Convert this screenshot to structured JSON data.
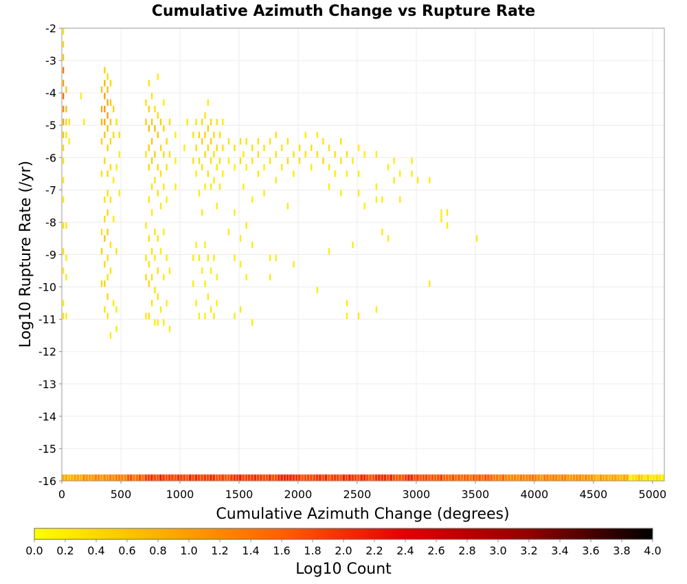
{
  "chart_data": {
    "type": "heatmap",
    "title": "Cumulative Azimuth Change vs Rupture Rate",
    "xlabel": "Cumulative Azimuth Change (degrees)",
    "ylabel": "Log10 Rupture Rate (/yr)",
    "xlim": [
      0,
      5100
    ],
    "ylim": [
      -16,
      -2
    ],
    "x_ticks": [
      0,
      500,
      1000,
      1500,
      2000,
      2500,
      3000,
      3500,
      4000,
      4500,
      5000
    ],
    "y_ticks": [
      -2,
      -3,
      -4,
      -5,
      -6,
      -7,
      -8,
      -9,
      -10,
      -11,
      -12,
      -13,
      -14,
      -15,
      -16
    ],
    "bin_width_x": 25,
    "bin_height_y": 0.2,
    "grid": true,
    "colorbar": {
      "label": "Log10 Count",
      "range": [
        0.0,
        4.0
      ],
      "ticks": [
        "0.0",
        "0.2",
        "0.4",
        "0.6",
        "0.8",
        "1.0",
        "1.2",
        "1.4",
        "1.6",
        "1.8",
        "2.0",
        "2.2",
        "2.4",
        "2.6",
        "2.8",
        "3.0",
        "3.2",
        "3.4",
        "3.6",
        "3.8",
        "4.0"
      ],
      "colors": [
        "#ffff00",
        "#ffb000",
        "#ff6000",
        "#e00000",
        "#900000",
        "#000000"
      ]
    },
    "cells": [
      [
        0,
        -2.2,
        0.3
      ],
      [
        0,
        -2.6,
        0.4
      ],
      [
        0,
        -3.0,
        0.6
      ],
      [
        0,
        -3.4,
        1.4
      ],
      [
        0,
        -3.8,
        1.0
      ],
      [
        0,
        -4.2,
        1.5
      ],
      [
        0,
        -4.6,
        1.2
      ],
      [
        0,
        -5.0,
        0.9
      ],
      [
        0,
        -5.4,
        0.6
      ],
      [
        0,
        -5.8,
        0.4
      ],
      [
        0,
        -6.2,
        0.3
      ],
      [
        0,
        -6.8,
        0.2
      ],
      [
        0,
        -7.4,
        0.2
      ],
      [
        0,
        -8.2,
        0.3
      ],
      [
        0,
        -9.0,
        0.3
      ],
      [
        0,
        -9.6,
        0.2
      ],
      [
        0,
        -10.6,
        0.2
      ],
      [
        0,
        -11.0,
        0.3
      ],
      [
        25,
        -4.0,
        0.6
      ],
      [
        25,
        -4.6,
        0.7
      ],
      [
        25,
        -5.0,
        0.5
      ],
      [
        25,
        -5.4,
        0.3
      ],
      [
        25,
        -8.2,
        0.3
      ],
      [
        25,
        -9.2,
        0.2
      ],
      [
        25,
        -9.8,
        0.2
      ],
      [
        25,
        -11.0,
        0.2
      ],
      [
        50,
        -5.0,
        0.3
      ],
      [
        50,
        -5.6,
        0.2
      ],
      [
        150,
        -4.2,
        0.2
      ],
      [
        175,
        -5.0,
        0.2
      ],
      [
        325,
        -4.0,
        0.6
      ],
      [
        325,
        -4.6,
        0.9
      ],
      [
        325,
        -5.0,
        0.8
      ],
      [
        325,
        -5.6,
        0.5
      ],
      [
        325,
        -6.6,
        0.3
      ],
      [
        325,
        -8.4,
        0.3
      ],
      [
        325,
        -9.0,
        0.5
      ],
      [
        325,
        -10.0,
        0.4
      ],
      [
        350,
        -3.4,
        0.5
      ],
      [
        350,
        -3.8,
        0.8
      ],
      [
        350,
        -4.2,
        1.0
      ],
      [
        350,
        -4.6,
        1.1
      ],
      [
        350,
        -5.0,
        0.9
      ],
      [
        350,
        -5.4,
        0.6
      ],
      [
        350,
        -6.2,
        0.4
      ],
      [
        350,
        -7.4,
        0.3
      ],
      [
        350,
        -8.0,
        0.4
      ],
      [
        350,
        -8.6,
        0.6
      ],
      [
        350,
        -9.4,
        0.4
      ],
      [
        350,
        -10.0,
        0.5
      ],
      [
        350,
        -10.8,
        0.3
      ],
      [
        375,
        -3.6,
        0.4
      ],
      [
        375,
        -4.0,
        0.7
      ],
      [
        375,
        -4.4,
        0.9
      ],
      [
        375,
        -4.8,
        1.0
      ],
      [
        375,
        -5.2,
        0.7
      ],
      [
        375,
        -5.8,
        0.5
      ],
      [
        375,
        -6.6,
        0.4
      ],
      [
        375,
        -7.2,
        0.3
      ],
      [
        375,
        -7.8,
        0.4
      ],
      [
        375,
        -8.4,
        0.5
      ],
      [
        375,
        -9.2,
        0.4
      ],
      [
        375,
        -9.8,
        0.3
      ],
      [
        375,
        -10.4,
        0.4
      ],
      [
        375,
        -11.0,
        0.3
      ],
      [
        400,
        -3.8,
        0.4
      ],
      [
        400,
        -4.4,
        0.6
      ],
      [
        400,
        -5.0,
        0.6
      ],
      [
        400,
        -5.6,
        0.4
      ],
      [
        400,
        -6.4,
        0.3
      ],
      [
        400,
        -7.4,
        0.3
      ],
      [
        400,
        -8.8,
        0.3
      ],
      [
        400,
        -9.6,
        0.3
      ],
      [
        400,
        -11.6,
        0.2
      ],
      [
        425,
        -4.6,
        0.5
      ],
      [
        425,
        -5.4,
        0.4
      ],
      [
        425,
        -6.8,
        0.2
      ],
      [
        425,
        -8.0,
        0.2
      ],
      [
        425,
        -10.6,
        0.2
      ],
      [
        450,
        -5.0,
        0.3
      ],
      [
        450,
        -6.4,
        0.2
      ],
      [
        450,
        -9.0,
        0.3
      ],
      [
        450,
        -10.8,
        0.2
      ],
      [
        450,
        -11.4,
        0.2
      ],
      [
        475,
        -5.4,
        0.3
      ],
      [
        475,
        -6.0,
        0.2
      ],
      [
        475,
        -7.2,
        0.2
      ],
      [
        700,
        -4.4,
        0.3
      ],
      [
        700,
        -5.0,
        0.5
      ],
      [
        700,
        -6.0,
        0.3
      ],
      [
        700,
        -8.2,
        0.2
      ],
      [
        700,
        -9.2,
        0.3
      ],
      [
        700,
        -9.8,
        0.4
      ],
      [
        700,
        -11.0,
        0.2
      ],
      [
        725,
        -3.8,
        0.3
      ],
      [
        725,
        -4.6,
        0.5
      ],
      [
        725,
        -5.2,
        0.7
      ],
      [
        725,
        -5.8,
        0.5
      ],
      [
        725,
        -6.4,
        0.4
      ],
      [
        725,
        -7.4,
        0.3
      ],
      [
        725,
        -8.6,
        0.3
      ],
      [
        725,
        -9.4,
        0.3
      ],
      [
        725,
        -10.0,
        0.4
      ],
      [
        725,
        -11.0,
        0.3
      ],
      [
        750,
        -4.2,
        0.3
      ],
      [
        750,
        -5.0,
        0.6
      ],
      [
        750,
        -5.6,
        0.6
      ],
      [
        750,
        -6.2,
        0.5
      ],
      [
        750,
        -7.0,
        0.3
      ],
      [
        750,
        -7.8,
        0.2
      ],
      [
        750,
        -9.0,
        0.3
      ],
      [
        750,
        -9.8,
        0.3
      ],
      [
        750,
        -10.6,
        0.3
      ],
      [
        775,
        -4.6,
        0.3
      ],
      [
        775,
        -5.2,
        0.7
      ],
      [
        775,
        -6.0,
        0.5
      ],
      [
        775,
        -6.8,
        0.3
      ],
      [
        775,
        -8.4,
        0.3
      ],
      [
        775,
        -9.2,
        0.2
      ],
      [
        775,
        -10.2,
        0.3
      ],
      [
        775,
        -11.2,
        0.2
      ],
      [
        800,
        -3.6,
        0.2
      ],
      [
        800,
        -4.8,
        0.4
      ],
      [
        800,
        -5.4,
        0.6
      ],
      [
        800,
        -6.4,
        0.4
      ],
      [
        800,
        -7.2,
        0.3
      ],
      [
        800,
        -8.6,
        0.3
      ],
      [
        800,
        -9.6,
        0.3
      ],
      [
        800,
        -10.4,
        0.3
      ],
      [
        800,
        -11.2,
        0.2
      ],
      [
        825,
        -5.0,
        0.5
      ],
      [
        825,
        -5.8,
        0.4
      ],
      [
        825,
        -6.6,
        0.3
      ],
      [
        825,
        -7.6,
        0.2
      ],
      [
        825,
        -9.0,
        0.2
      ],
      [
        825,
        -10.8,
        0.2
      ],
      [
        850,
        -4.4,
        0.2
      ],
      [
        850,
        -5.2,
        0.4
      ],
      [
        850,
        -6.0,
        0.4
      ],
      [
        850,
        -7.0,
        0.2
      ],
      [
        850,
        -8.4,
        0.2
      ],
      [
        850,
        -9.8,
        0.2
      ],
      [
        850,
        -11.2,
        0.2
      ],
      [
        875,
        -5.6,
        0.4
      ],
      [
        875,
        -6.4,
        0.3
      ],
      [
        875,
        -7.4,
        0.2
      ],
      [
        875,
        -9.2,
        0.2
      ],
      [
        875,
        -10.6,
        0.2
      ],
      [
        900,
        -5.0,
        0.3
      ],
      [
        900,
        -6.0,
        0.3
      ],
      [
        900,
        -9.6,
        0.2
      ],
      [
        900,
        -11.4,
        0.2
      ],
      [
        950,
        -5.4,
        0.2
      ],
      [
        950,
        -6.2,
        0.2
      ],
      [
        950,
        -7.0,
        0.2
      ],
      [
        1025,
        -5.8,
        0.2
      ],
      [
        1050,
        -5.0,
        0.2
      ],
      [
        1100,
        -5.4,
        0.3
      ],
      [
        1100,
        -6.2,
        0.3
      ],
      [
        1100,
        -9.2,
        0.2
      ],
      [
        1100,
        -10.0,
        0.2
      ],
      [
        1125,
        -5.0,
        0.3
      ],
      [
        1125,
        -5.8,
        0.4
      ],
      [
        1125,
        -6.6,
        0.2
      ],
      [
        1125,
        -8.8,
        0.2
      ],
      [
        1125,
        -10.6,
        0.2
      ],
      [
        1150,
        -5.4,
        0.4
      ],
      [
        1150,
        -6.2,
        0.3
      ],
      [
        1150,
        -7.2,
        0.2
      ],
      [
        1150,
        -9.2,
        0.2
      ],
      [
        1150,
        -11.0,
        0.2
      ],
      [
        1175,
        -5.0,
        0.4
      ],
      [
        1175,
        -5.6,
        0.5
      ],
      [
        1175,
        -6.4,
        0.3
      ],
      [
        1175,
        -7.8,
        0.2
      ],
      [
        1175,
        -9.6,
        0.2
      ],
      [
        1200,
        -4.8,
        0.3
      ],
      [
        1200,
        -5.4,
        0.5
      ],
      [
        1200,
        -6.0,
        0.4
      ],
      [
        1200,
        -7.0,
        0.2
      ],
      [
        1200,
        -8.8,
        0.2
      ],
      [
        1200,
        -10.0,
        0.2
      ],
      [
        1200,
        -11.0,
        0.2
      ],
      [
        1225,
        -4.4,
        0.2
      ],
      [
        1225,
        -5.2,
        0.5
      ],
      [
        1225,
        -5.8,
        0.4
      ],
      [
        1225,
        -6.6,
        0.3
      ],
      [
        1225,
        -9.2,
        0.2
      ],
      [
        1225,
        -10.4,
        0.2
      ],
      [
        1250,
        -5.0,
        0.4
      ],
      [
        1250,
        -5.6,
        0.5
      ],
      [
        1250,
        -6.2,
        0.3
      ],
      [
        1250,
        -7.0,
        0.2
      ],
      [
        1250,
        -9.6,
        0.2
      ],
      [
        1250,
        -10.8,
        0.2
      ],
      [
        1275,
        -5.4,
        0.4
      ],
      [
        1275,
        -6.0,
        0.3
      ],
      [
        1275,
        -6.8,
        0.2
      ],
      [
        1275,
        -9.2,
        0.2
      ],
      [
        1275,
        -11.0,
        0.2
      ],
      [
        1300,
        -5.0,
        0.3
      ],
      [
        1300,
        -5.8,
        0.4
      ],
      [
        1300,
        -6.4,
        0.2
      ],
      [
        1300,
        -7.6,
        0.2
      ],
      [
        1300,
        -9.8,
        0.2
      ],
      [
        1300,
        -10.6,
        0.2
      ],
      [
        1325,
        -5.4,
        0.3
      ],
      [
        1325,
        -6.2,
        0.3
      ],
      [
        1325,
        -7.0,
        0.2
      ],
      [
        1350,
        -5.0,
        0.2
      ],
      [
        1350,
        -5.8,
        0.3
      ],
      [
        1350,
        -6.6,
        0.2
      ],
      [
        1400,
        -5.6,
        0.3
      ],
      [
        1400,
        -6.2,
        0.2
      ],
      [
        1400,
        -8.4,
        0.2
      ],
      [
        1450,
        -5.8,
        0.3
      ],
      [
        1450,
        -6.4,
        0.2
      ],
      [
        1450,
        -7.8,
        0.2
      ],
      [
        1450,
        -9.2,
        0.2
      ],
      [
        1450,
        -11.0,
        0.2
      ],
      [
        1500,
        -5.6,
        0.3
      ],
      [
        1500,
        -6.2,
        0.3
      ],
      [
        1500,
        -8.6,
        0.2
      ],
      [
        1500,
        -9.4,
        0.2
      ],
      [
        1500,
        -10.8,
        0.2
      ],
      [
        1525,
        -6.0,
        0.2
      ],
      [
        1525,
        -7.0,
        0.2
      ],
      [
        1550,
        -5.6,
        0.3
      ],
      [
        1550,
        -6.4,
        0.2
      ],
      [
        1550,
        -8.2,
        0.2
      ],
      [
        1550,
        -9.8,
        0.2
      ],
      [
        1600,
        -5.8,
        0.3
      ],
      [
        1600,
        -6.2,
        0.3
      ],
      [
        1600,
        -7.4,
        0.2
      ],
      [
        1600,
        -8.8,
        0.2
      ],
      [
        1600,
        -11.2,
        0.2
      ],
      [
        1650,
        -5.6,
        0.3
      ],
      [
        1650,
        -6.0,
        0.3
      ],
      [
        1650,
        -6.6,
        0.2
      ],
      [
        1700,
        -5.8,
        0.3
      ],
      [
        1700,
        -6.4,
        0.2
      ],
      [
        1700,
        -7.2,
        0.2
      ],
      [
        1750,
        -5.6,
        0.3
      ],
      [
        1750,
        -6.2,
        0.3
      ],
      [
        1750,
        -9.2,
        0.2
      ],
      [
        1750,
        -9.8,
        0.2
      ],
      [
        1800,
        -5.4,
        0.3
      ],
      [
        1800,
        -6.0,
        0.3
      ],
      [
        1800,
        -6.8,
        0.2
      ],
      [
        1800,
        -9.2,
        0.2
      ],
      [
        1850,
        -5.8,
        0.3
      ],
      [
        1850,
        -6.4,
        0.2
      ],
      [
        1900,
        -5.6,
        0.3
      ],
      [
        1900,
        -6.2,
        0.4
      ],
      [
        1900,
        -7.6,
        0.2
      ],
      [
        1950,
        -6.0,
        0.3
      ],
      [
        1950,
        -6.6,
        0.2
      ],
      [
        1950,
        -9.4,
        0.2
      ],
      [
        2000,
        -5.8,
        0.3
      ],
      [
        2000,
        -6.2,
        0.3
      ],
      [
        2050,
        -5.4,
        0.2
      ],
      [
        2050,
        -6.0,
        0.3
      ],
      [
        2100,
        -5.8,
        0.3
      ],
      [
        2100,
        -6.4,
        0.2
      ],
      [
        2150,
        -5.4,
        0.2
      ],
      [
        2150,
        -6.0,
        0.3
      ],
      [
        2150,
        -10.2,
        0.2
      ],
      [
        2200,
        -5.6,
        0.3
      ],
      [
        2200,
        -6.2,
        0.4
      ],
      [
        2250,
        -5.8,
        0.3
      ],
      [
        2250,
        -6.4,
        0.2
      ],
      [
        2250,
        -7.0,
        0.2
      ],
      [
        2250,
        -9.0,
        0.2
      ],
      [
        2300,
        -6.0,
        0.3
      ],
      [
        2300,
        -6.6,
        0.2
      ],
      [
        2350,
        -5.6,
        0.3
      ],
      [
        2350,
        -6.2,
        0.3
      ],
      [
        2350,
        -7.2,
        0.2
      ],
      [
        2400,
        -6.0,
        0.3
      ],
      [
        2400,
        -6.6,
        0.2
      ],
      [
        2400,
        -10.6,
        0.2
      ],
      [
        2400,
        -11.0,
        0.2
      ],
      [
        2450,
        -6.2,
        0.2
      ],
      [
        2450,
        -8.8,
        0.2
      ],
      [
        2500,
        -5.8,
        0.2
      ],
      [
        2500,
        -6.6,
        0.2
      ],
      [
        2500,
        -7.2,
        0.2
      ],
      [
        2500,
        -11.0,
        0.2
      ],
      [
        2550,
        -6.0,
        0.2
      ],
      [
        2550,
        -7.6,
        0.2
      ],
      [
        2650,
        -6.0,
        0.2
      ],
      [
        2650,
        -7.0,
        0.2
      ],
      [
        2650,
        -7.4,
        0.2
      ],
      [
        2650,
        -10.8,
        0.2
      ],
      [
        2700,
        -7.4,
        0.2
      ],
      [
        2700,
        -8.4,
        0.2
      ],
      [
        2750,
        -6.4,
        0.2
      ],
      [
        2750,
        -8.6,
        0.2
      ],
      [
        2800,
        -6.2,
        0.2
      ],
      [
        2800,
        -6.8,
        0.2
      ],
      [
        2850,
        -6.6,
        0.2
      ],
      [
        2850,
        -7.4,
        0.2
      ],
      [
        2950,
        -6.2,
        0.2
      ],
      [
        2950,
        -6.6,
        0.2
      ],
      [
        3000,
        -6.8,
        0.2
      ],
      [
        3100,
        -6.8,
        0.2
      ],
      [
        3100,
        -10.0,
        0.2
      ],
      [
        3200,
        -7.8,
        0.2
      ],
      [
        3200,
        -8.0,
        0.2
      ],
      [
        3250,
        -7.8,
        0.2
      ],
      [
        3250,
        -8.2,
        0.2
      ],
      [
        3500,
        -8.6,
        0.2
      ]
    ]
  }
}
